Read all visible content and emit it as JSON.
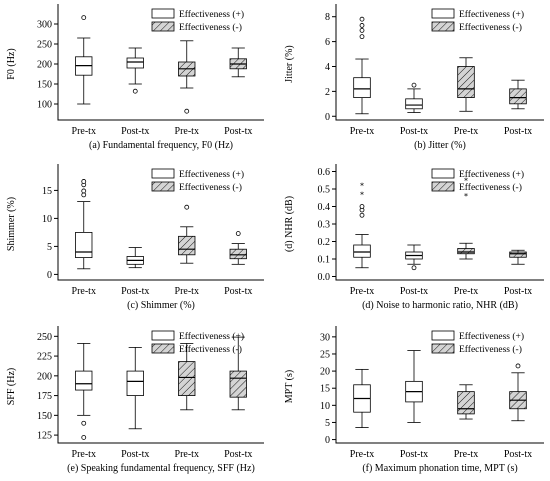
{
  "colors": {
    "plain": "#ffffff",
    "hatched_fill": "#d4d4d4",
    "hatch_line": "#000000",
    "stroke": "#000000"
  },
  "legend": {
    "positive": "Effectiveness (+)",
    "negative": "Effectiveness (-)"
  },
  "chart_data": [
    {
      "id": "a",
      "type": "box",
      "ylabel": "F0 (Hz)",
      "caption": "(a) Fundamental frequency, F0 (Hz)",
      "ylim": [
        60,
        340
      ],
      "yticks": [
        100,
        150,
        200,
        250,
        300
      ],
      "categories": [
        "Pre-tx",
        "Post-tx",
        "Pre-tx",
        "Post-tx"
      ],
      "boxes": [
        {
          "group": "positive",
          "min": 100,
          "q1": 172,
          "median": 196,
          "q3": 218,
          "max": 265,
          "outliers": [
            {
              "v": 316,
              "m": "o"
            }
          ]
        },
        {
          "group": "positive",
          "min": 150,
          "q1": 190,
          "median": 205,
          "q3": 215,
          "max": 240,
          "outliers": [
            {
              "v": 132,
              "m": "o"
            }
          ]
        },
        {
          "group": "negative",
          "min": 140,
          "q1": 170,
          "median": 188,
          "q3": 205,
          "max": 258,
          "outliers": [
            {
              "v": 82,
              "m": "o"
            }
          ]
        },
        {
          "group": "negative",
          "min": 168,
          "q1": 188,
          "median": 200,
          "q3": 213,
          "max": 240,
          "outliers": []
        }
      ]
    },
    {
      "id": "b",
      "type": "box",
      "ylabel": "Jitter (%)",
      "caption": "(b) Jitter (%)",
      "ylim": [
        -0.3,
        8.7
      ],
      "yticks": [
        0,
        2,
        4,
        6,
        8
      ],
      "categories": [
        "Pre-tx",
        "Post-tx",
        "Pre-tx",
        "Post-tx"
      ],
      "boxes": [
        {
          "group": "positive",
          "min": 0.2,
          "q1": 1.5,
          "median": 2.2,
          "q3": 3.1,
          "max": 4.6,
          "outliers": [
            {
              "v": 6.4,
              "m": "o"
            },
            {
              "v": 6.9,
              "m": "o"
            },
            {
              "v": 7.3,
              "m": "o"
            },
            {
              "v": 7.8,
              "m": "o"
            }
          ]
        },
        {
          "group": "positive",
          "min": 0.3,
          "q1": 0.6,
          "median": 0.9,
          "q3": 1.4,
          "max": 2.2,
          "outliers": [
            {
              "v": 2.5,
              "m": "o"
            }
          ]
        },
        {
          "group": "negative",
          "min": 0.4,
          "q1": 1.5,
          "median": 2.2,
          "q3": 4.0,
          "max": 4.7,
          "outliers": []
        },
        {
          "group": "negative",
          "min": 0.6,
          "q1": 1.0,
          "median": 1.5,
          "q3": 2.2,
          "max": 2.9,
          "outliers": []
        }
      ]
    },
    {
      "id": "c",
      "type": "box",
      "ylabel": "Shimmer (%)",
      "caption": "(c) Shimmer (%)",
      "ylim": [
        -1,
        19
      ],
      "yticks": [
        0,
        5,
        10,
        15
      ],
      "categories": [
        "Pre-tx",
        "Post-tx",
        "Pre-tx",
        "Post-tx"
      ],
      "boxes": [
        {
          "group": "positive",
          "min": 1.0,
          "q1": 3.0,
          "median": 4.0,
          "q3": 7.5,
          "max": 13.0,
          "outliers": [
            {
              "v": 14.2,
              "m": "o"
            },
            {
              "v": 14.9,
              "m": "o"
            },
            {
              "v": 16.0,
              "m": "o"
            },
            {
              "v": 16.6,
              "m": "o"
            }
          ]
        },
        {
          "group": "positive",
          "min": 1.2,
          "q1": 1.8,
          "median": 2.5,
          "q3": 3.2,
          "max": 4.8,
          "outliers": []
        },
        {
          "group": "negative",
          "min": 2.0,
          "q1": 3.5,
          "median": 4.5,
          "q3": 6.8,
          "max": 8.5,
          "outliers": [
            {
              "v": 12.0,
              "m": "o"
            }
          ]
        },
        {
          "group": "negative",
          "min": 1.8,
          "q1": 2.8,
          "median": 3.5,
          "q3": 4.5,
          "max": 5.5,
          "outliers": [
            {
              "v": 7.3,
              "m": "o"
            }
          ]
        }
      ]
    },
    {
      "id": "d",
      "type": "box",
      "ylabel": "(d) NHR (dB)",
      "caption": "(d) Noise to harmonic ratio, NHR (dB)",
      "ylim": [
        -0.02,
        0.62
      ],
      "yticks": [
        0.0,
        0.1,
        0.2,
        0.3,
        0.4,
        0.5,
        0.6
      ],
      "categories": [
        "Pre-tx",
        "Post-tx",
        "Pre-tx",
        "Post-tx"
      ],
      "boxes": [
        {
          "group": "positive",
          "min": 0.05,
          "q1": 0.11,
          "median": 0.14,
          "q3": 0.18,
          "max": 0.24,
          "outliers": [
            {
              "v": 0.35,
              "m": "o"
            },
            {
              "v": 0.38,
              "m": "o"
            },
            {
              "v": 0.4,
              "m": "o"
            },
            {
              "v": 0.47,
              "m": "*"
            },
            {
              "v": 0.52,
              "m": "*"
            }
          ]
        },
        {
          "group": "positive",
          "min": 0.07,
          "q1": 0.1,
          "median": 0.12,
          "q3": 0.14,
          "max": 0.18,
          "outliers": [
            {
              "v": 0.05,
              "m": "o"
            }
          ]
        },
        {
          "group": "negative",
          "min": 0.1,
          "q1": 0.13,
          "median": 0.14,
          "q3": 0.16,
          "max": 0.19,
          "outliers": [
            {
              "v": 0.46,
              "m": "*"
            },
            {
              "v": 0.55,
              "m": "*"
            }
          ]
        },
        {
          "group": "negative",
          "min": 0.07,
          "q1": 0.11,
          "median": 0.13,
          "q3": 0.14,
          "max": 0.15,
          "outliers": []
        }
      ]
    },
    {
      "id": "e",
      "type": "box",
      "ylabel": "SFF (Hz)",
      "caption": "(e) Speaking fundamental frequency, SFF (Hz)",
      "ylim": [
        115,
        258
      ],
      "yticks": [
        125,
        150,
        175,
        200,
        225,
        250
      ],
      "categories": [
        "Pre-tx",
        "Post-tx",
        "Pre-tx",
        "Post-tx"
      ],
      "boxes": [
        {
          "group": "positive",
          "min": 150,
          "q1": 182,
          "median": 190,
          "q3": 206,
          "max": 241,
          "outliers": [
            {
              "v": 140,
              "m": "o"
            },
            {
              "v": 122,
              "m": "o"
            }
          ]
        },
        {
          "group": "positive",
          "min": 133,
          "q1": 175,
          "median": 193,
          "q3": 206,
          "max": 236,
          "outliers": []
        },
        {
          "group": "negative",
          "min": 157,
          "q1": 175,
          "median": 198,
          "q3": 218,
          "max": 241,
          "outliers": []
        },
        {
          "group": "negative",
          "min": 157,
          "q1": 173,
          "median": 197,
          "q3": 206,
          "max": 249,
          "outliers": []
        }
      ]
    },
    {
      "id": "f",
      "type": "box",
      "ylabel": "MPT (s)",
      "caption": "(f) Maximum phonation time, MPT (s)",
      "ylim": [
        -1,
        32
      ],
      "yticks": [
        0,
        5,
        10,
        15,
        20,
        25,
        30
      ],
      "categories": [
        "Pre-tx",
        "Post-tx",
        "Pre-tx",
        "Post-tx"
      ],
      "boxes": [
        {
          "group": "positive",
          "min": 3.5,
          "q1": 8.0,
          "median": 12.0,
          "q3": 16.0,
          "max": 20.5,
          "outliers": []
        },
        {
          "group": "positive",
          "min": 5.0,
          "q1": 11.0,
          "median": 14.0,
          "q3": 17.0,
          "max": 26.0,
          "outliers": []
        },
        {
          "group": "negative",
          "min": 6.0,
          "q1": 7.5,
          "median": 9.0,
          "q3": 14.0,
          "max": 16.0,
          "outliers": []
        },
        {
          "group": "negative",
          "min": 5.5,
          "q1": 9.0,
          "median": 11.5,
          "q3": 14.0,
          "max": 19.5,
          "outliers": [
            {
              "v": 21.5,
              "m": "o"
            }
          ]
        }
      ]
    }
  ]
}
